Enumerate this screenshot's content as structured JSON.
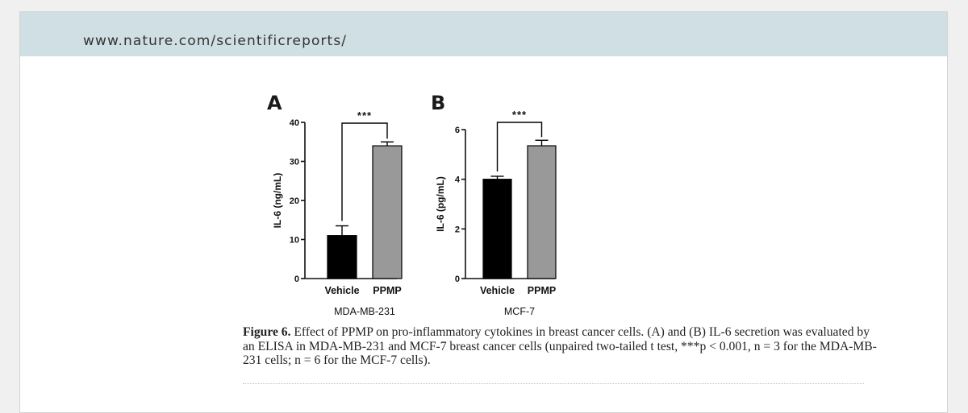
{
  "header": {
    "url": "www.nature.com/scientificreports/"
  },
  "colors": {
    "header_bg": "#cfdfe3",
    "vehicle": "#000000",
    "ppmp": "#999999"
  },
  "chart_data": [
    {
      "type": "bar",
      "panel": "A",
      "categories": [
        "Vehicle",
        "PPMP"
      ],
      "values": [
        11,
        34
      ],
      "errors": [
        2.5,
        1.0
      ],
      "bar_colors": [
        "#000000",
        "#999999"
      ],
      "ylabel": "IL-6 (ng/mL)",
      "xlabel": "MDA-MB-231",
      "ylim": [
        0,
        40
      ],
      "yticks": [
        "0",
        "10",
        "20",
        "30",
        "40"
      ],
      "significance": "***"
    },
    {
      "type": "bar",
      "panel": "B",
      "categories": [
        "Vehicle",
        "PPMP"
      ],
      "values": [
        4.0,
        5.35
      ],
      "errors": [
        0.12,
        0.22
      ],
      "bar_colors": [
        "#000000",
        "#999999"
      ],
      "ylabel": "IL-6 (pg/mL)",
      "xlabel": "MCF-7",
      "ylim": [
        0,
        6
      ],
      "yticks": [
        "0",
        "2",
        "4",
        "6"
      ],
      "significance": "***"
    }
  ],
  "caption": {
    "label": "Figure 6.",
    "text": "Effect of PPMP on pro-inflammatory cytokines in breast cancer cells. (A) and (B) IL-6 secretion was evaluated by an ELISA in MDA-MB-231 and MCF-7 breast cancer cells (unpaired two-tailed t test, ***p < 0.001, n = 3 for the MDA-MB-231 cells; n = 6 for the MCF-7 cells)."
  }
}
